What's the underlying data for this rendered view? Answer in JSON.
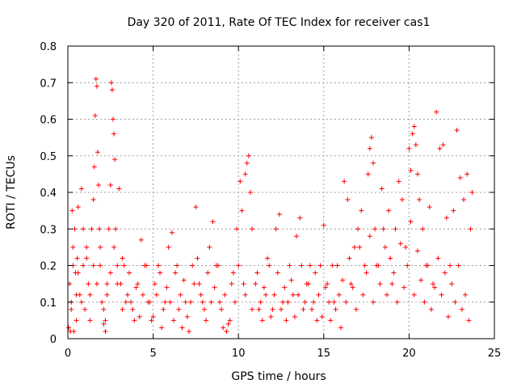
{
  "chart_data": {
    "type": "scatter",
    "title": "Day 320 of 2011, Rate Of TEC Index for receiver cas1",
    "xlabel": "GPS time / hours",
    "ylabel": "ROTI / TECUs",
    "xlim": [
      0,
      25
    ],
    "ylim": [
      0,
      0.8
    ],
    "x_ticks": [
      0,
      5,
      10,
      15,
      20,
      25
    ],
    "y_ticks": [
      0,
      0.1,
      0.2,
      0.3,
      0.4,
      0.5,
      0.6,
      0.7,
      0.8
    ],
    "grid": true,
    "marker": "plus",
    "color": "#ff0000",
    "series": [
      {
        "x": [
          0.05,
          0.1,
          0.15,
          0.2,
          0.25,
          0.3,
          0.35,
          0.4,
          0.45,
          0.5,
          0.55,
          0.6,
          0.7,
          0.8,
          0.9,
          1.0,
          1.1,
          1.2,
          1.3,
          1.4,
          1.5,
          1.55,
          1.6,
          1.65,
          1.7,
          1.75,
          1.8,
          1.85,
          1.9,
          2.0,
          2.1,
          2.2,
          2.3,
          2.4,
          2.5,
          2.55,
          2.6,
          2.65,
          2.7,
          2.75,
          2.8,
          2.9,
          3.0,
          3.1,
          3.2,
          3.3,
          3.5,
          3.7,
          3.9,
          4.1,
          4.3,
          4.5,
          4.7,
          4.9,
          5.1,
          5.3,
          5.5,
          5.7,
          5.9,
          6.1,
          6.3,
          6.5,
          6.7,
          6.9,
          7.1,
          7.3,
          7.5,
          7.7,
          7.9,
          8.1,
          8.3,
          8.5,
          8.7,
          8.9,
          9.1,
          9.3,
          9.5,
          9.7,
          9.9,
          10.1,
          10.2,
          10.3,
          10.4,
          10.5,
          10.6,
          10.7,
          10.8,
          11.0,
          11.2,
          11.4,
          11.6,
          11.8,
          12.0,
          12.2,
          12.4,
          12.6,
          12.8,
          13.0,
          13.2,
          13.4,
          13.6,
          13.8,
          14.0,
          14.2,
          14.4,
          14.6,
          14.8,
          15.0,
          15.2,
          15.4,
          15.6,
          15.8,
          16.0,
          16.2,
          16.4,
          16.6,
          16.8,
          17.0,
          17.2,
          17.4,
          17.6,
          17.7,
          17.8,
          17.9,
          18.0,
          18.2,
          18.4,
          18.6,
          18.8,
          19.0,
          19.2,
          19.4,
          19.6,
          19.8,
          20.0,
          20.1,
          20.2,
          20.3,
          20.4,
          20.5,
          20.6,
          20.8,
          21.0,
          21.2,
          21.4,
          21.6,
          21.8,
          22.0,
          22.2,
          22.4,
          22.6,
          22.8,
          23.0,
          23.2,
          23.4,
          23.6,
          23.7
        ],
        "y": [
          0.03,
          0.15,
          0.02,
          0.1,
          0.35,
          0.25,
          0.02,
          0.3,
          0.18,
          0.05,
          0.22,
          0.36,
          0.12,
          0.41,
          0.2,
          0.08,
          0.25,
          0.15,
          0.05,
          0.3,
          0.38,
          0.47,
          0.61,
          0.71,
          0.69,
          0.51,
          0.42,
          0.3,
          0.2,
          0.1,
          0.04,
          0.02,
          0.15,
          0.3,
          0.42,
          0.7,
          0.68,
          0.6,
          0.56,
          0.49,
          0.3,
          0.2,
          0.41,
          0.15,
          0.08,
          0.2,
          0.12,
          0.1,
          0.05,
          0.15,
          0.27,
          0.2,
          0.1,
          0.05,
          0.15,
          0.2,
          0.03,
          0.1,
          0.25,
          0.29,
          0.18,
          0.08,
          0.03,
          0.1,
          0.02,
          0.2,
          0.36,
          0.15,
          0.1,
          0.05,
          0.25,
          0.32,
          0.2,
          0.1,
          0.03,
          0.02,
          0.05,
          0.18,
          0.3,
          0.43,
          0.35,
          0.15,
          0.45,
          0.48,
          0.5,
          0.4,
          0.3,
          0.15,
          0.08,
          0.05,
          0.12,
          0.2,
          0.08,
          0.3,
          0.34,
          0.1,
          0.05,
          0.2,
          0.12,
          0.28,
          0.33,
          0.08,
          0.15,
          0.2,
          0.1,
          0.05,
          0.2,
          0.31,
          0.15,
          0.05,
          0.1,
          0.2,
          0.03,
          0.43,
          0.38,
          0.15,
          0.25,
          0.3,
          0.35,
          0.2,
          0.45,
          0.52,
          0.55,
          0.48,
          0.3,
          0.2,
          0.41,
          0.25,
          0.35,
          0.15,
          0.3,
          0.43,
          0.38,
          0.25,
          0.52,
          0.46,
          0.56,
          0.58,
          0.53,
          0.45,
          0.38,
          0.3,
          0.2,
          0.36,
          0.15,
          0.62,
          0.52,
          0.53,
          0.33,
          0.2,
          0.35,
          0.57,
          0.44,
          0.38,
          0.45,
          0.3,
          0.4
        ]
      },
      {
        "x": [
          0.2,
          0.3,
          0.5,
          0.6,
          0.8,
          0.9,
          1.1,
          1.3,
          1.5,
          1.7,
          1.9,
          2.1,
          2.2,
          2.3,
          2.5,
          2.7,
          2.9,
          3.2,
          3.4,
          3.6,
          3.8,
          4.0,
          4.2,
          4.4,
          4.6,
          4.8,
          5.0,
          5.2,
          5.4,
          5.6,
          5.8,
          6.0,
          6.2,
          6.4,
          6.6,
          6.8,
          7.0,
          7.2,
          7.4,
          7.6,
          7.8,
          8.0,
          8.2,
          8.4,
          8.6,
          8.8,
          9.0,
          9.2,
          9.4,
          9.6,
          9.8,
          10.0,
          10.4,
          10.8,
          11.1,
          11.3,
          11.5,
          11.7,
          11.9,
          12.1,
          12.3,
          12.5,
          12.7,
          12.9,
          13.1,
          13.3,
          13.5,
          13.7,
          13.9,
          14.1,
          14.3,
          14.5,
          14.7,
          14.9,
          15.1,
          15.3,
          15.5,
          15.7,
          15.9,
          16.1,
          16.3,
          16.5,
          16.7,
          16.9,
          17.1,
          17.3,
          17.5,
          17.7,
          17.9,
          18.1,
          18.3,
          18.5,
          18.7,
          18.9,
          19.1,
          19.3,
          19.5,
          19.7,
          19.9,
          20.1,
          20.3,
          20.5,
          20.7,
          20.9,
          21.1,
          21.3,
          21.5,
          21.7,
          21.9,
          22.1,
          22.3,
          22.5,
          22.7,
          22.9,
          23.1,
          23.3,
          23.5
        ],
        "y": [
          0.08,
          0.2,
          0.12,
          0.18,
          0.1,
          0.3,
          0.22,
          0.12,
          0.2,
          0.15,
          0.25,
          0.08,
          0.05,
          0.12,
          0.18,
          0.25,
          0.15,
          0.22,
          0.1,
          0.18,
          0.08,
          0.14,
          0.06,
          0.12,
          0.2,
          0.1,
          0.06,
          0.12,
          0.18,
          0.08,
          0.14,
          0.1,
          0.05,
          0.2,
          0.12,
          0.16,
          0.06,
          0.1,
          0.15,
          0.22,
          0.12,
          0.08,
          0.18,
          0.1,
          0.14,
          0.2,
          0.08,
          0.12,
          0.04,
          0.15,
          0.1,
          0.2,
          0.12,
          0.08,
          0.18,
          0.1,
          0.14,
          0.22,
          0.06,
          0.12,
          0.18,
          0.08,
          0.14,
          0.1,
          0.16,
          0.06,
          0.12,
          0.2,
          0.1,
          0.15,
          0.08,
          0.18,
          0.12,
          0.06,
          0.14,
          0.1,
          0.2,
          0.08,
          0.12,
          0.16,
          0.1,
          0.22,
          0.14,
          0.08,
          0.25,
          0.12,
          0.18,
          0.28,
          0.1,
          0.2,
          0.15,
          0.3,
          0.12,
          0.22,
          0.18,
          0.1,
          0.26,
          0.14,
          0.2,
          0.32,
          0.12,
          0.24,
          0.16,
          0.1,
          0.2,
          0.08,
          0.14,
          0.22,
          0.12,
          0.18,
          0.06,
          0.15,
          0.1,
          0.2,
          0.08,
          0.12,
          0.05
        ]
      }
    ]
  }
}
